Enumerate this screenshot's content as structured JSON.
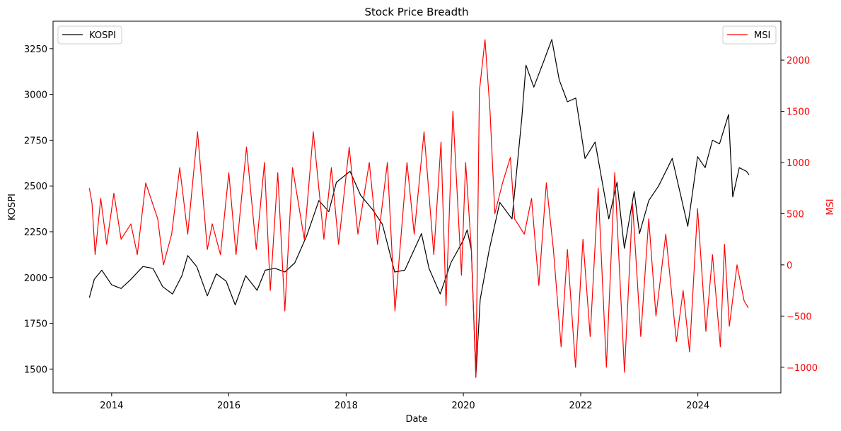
{
  "chart_data": {
    "type": "line",
    "title": "Stock Price Breadth",
    "xlabel": "Date",
    "ylabel_left": "KOSPI",
    "ylabel_right": "MSI",
    "x_ticks": [
      "2014",
      "2016",
      "2018",
      "2020",
      "2022",
      "2024"
    ],
    "xlim": [
      "2013-01-01",
      "2025-06-01"
    ],
    "ylim_left": [
      1370,
      3400
    ],
    "ylim_right": [
      -1250,
      2380
    ],
    "y_ticks_left": [
      1500,
      1750,
      2000,
      2250,
      2500,
      2750,
      3000,
      3250
    ],
    "y_ticks_right": [
      -1000,
      -500,
      0,
      500,
      1000,
      1500,
      2000
    ],
    "grid": false,
    "colors": {
      "left_axis": "#000000",
      "right_axis": "#ff0000"
    },
    "legends": [
      {
        "label": "KOSPI",
        "placement": "upper-left"
      },
      {
        "label": "MSI",
        "placement": "upper-right"
      }
    ],
    "series": [
      {
        "name": "KOSPI",
        "axis": "left",
        "color": "#000000",
        "points": [
          [
            "2013-08-15",
            1890
          ],
          [
            "2013-09-15",
            1990
          ],
          [
            "2013-11-01",
            2040
          ],
          [
            "2014-01-01",
            1960
          ],
          [
            "2014-03-01",
            1940
          ],
          [
            "2014-05-01",
            1990
          ],
          [
            "2014-07-15",
            2060
          ],
          [
            "2014-09-15",
            2050
          ],
          [
            "2014-11-15",
            1950
          ],
          [
            "2015-01-15",
            1910
          ],
          [
            "2015-03-15",
            2010
          ],
          [
            "2015-04-20",
            2120
          ],
          [
            "2015-06-15",
            2060
          ],
          [
            "2015-08-20",
            1900
          ],
          [
            "2015-10-15",
            2020
          ],
          [
            "2015-12-15",
            1980
          ],
          [
            "2016-02-10",
            1850
          ],
          [
            "2016-04-15",
            2010
          ],
          [
            "2016-06-25",
            1930
          ],
          [
            "2016-08-15",
            2040
          ],
          [
            "2016-10-15",
            2050
          ],
          [
            "2016-12-15",
            2030
          ],
          [
            "2017-02-15",
            2080
          ],
          [
            "2017-05-01",
            2230
          ],
          [
            "2017-07-15",
            2420
          ],
          [
            "2017-09-15",
            2360
          ],
          [
            "2017-11-01",
            2520
          ],
          [
            "2018-01-25",
            2580
          ],
          [
            "2018-04-01",
            2450
          ],
          [
            "2018-06-15",
            2370
          ],
          [
            "2018-08-15",
            2290
          ],
          [
            "2018-10-30",
            2030
          ],
          [
            "2019-01-01",
            2040
          ],
          [
            "2019-04-15",
            2240
          ],
          [
            "2019-06-01",
            2050
          ],
          [
            "2019-08-10",
            1910
          ],
          [
            "2019-10-15",
            2080
          ],
          [
            "2019-12-30",
            2200
          ],
          [
            "2020-01-25",
            2260
          ],
          [
            "2020-02-20",
            2150
          ],
          [
            "2020-03-19",
            1460
          ],
          [
            "2020-04-15",
            1880
          ],
          [
            "2020-06-10",
            2150
          ],
          [
            "2020-08-15",
            2410
          ],
          [
            "2020-10-30",
            2320
          ],
          [
            "2020-12-30",
            2870
          ],
          [
            "2021-01-25",
            3160
          ],
          [
            "2021-03-15",
            3040
          ],
          [
            "2021-05-15",
            3180
          ],
          [
            "2021-07-05",
            3300
          ],
          [
            "2021-08-20",
            3080
          ],
          [
            "2021-10-10",
            2960
          ],
          [
            "2021-12-01",
            2980
          ],
          [
            "2022-01-28",
            2650
          ],
          [
            "2022-04-01",
            2740
          ],
          [
            "2022-06-25",
            2320
          ],
          [
            "2022-08-15",
            2520
          ],
          [
            "2022-09-30",
            2160
          ],
          [
            "2022-11-30",
            2470
          ],
          [
            "2023-01-02",
            2240
          ],
          [
            "2023-03-01",
            2420
          ],
          [
            "2023-05-01",
            2500
          ],
          [
            "2023-07-25",
            2650
          ],
          [
            "2023-10-30",
            2280
          ],
          [
            "2023-12-30",
            2660
          ],
          [
            "2024-02-15",
            2600
          ],
          [
            "2024-04-01",
            2750
          ],
          [
            "2024-05-15",
            2730
          ],
          [
            "2024-07-10",
            2890
          ],
          [
            "2024-08-05",
            2440
          ],
          [
            "2024-09-15",
            2600
          ],
          [
            "2024-10-30",
            2580
          ],
          [
            "2024-11-15",
            2560
          ]
        ]
      },
      {
        "name": "MSI",
        "axis": "right",
        "color": "#ff0000",
        "points": [
          [
            "2013-08-15",
            750
          ],
          [
            "2013-09-01",
            600
          ],
          [
            "2013-09-20",
            100
          ],
          [
            "2013-10-25",
            650
          ],
          [
            "2013-12-01",
            200
          ],
          [
            "2014-01-15",
            700
          ],
          [
            "2014-03-01",
            250
          ],
          [
            "2014-05-01",
            400
          ],
          [
            "2014-06-10",
            100
          ],
          [
            "2014-08-01",
            800
          ],
          [
            "2014-10-15",
            450
          ],
          [
            "2014-11-20",
            0
          ],
          [
            "2015-01-10",
            300
          ],
          [
            "2015-03-01",
            950
          ],
          [
            "2015-04-20",
            300
          ],
          [
            "2015-06-20",
            1300
          ],
          [
            "2015-08-20",
            150
          ],
          [
            "2015-09-20",
            400
          ],
          [
            "2015-11-10",
            100
          ],
          [
            "2016-01-01",
            900
          ],
          [
            "2016-02-15",
            100
          ],
          [
            "2016-04-20",
            1150
          ],
          [
            "2016-06-20",
            150
          ],
          [
            "2016-08-10",
            1000
          ],
          [
            "2016-09-15",
            -250
          ],
          [
            "2016-11-01",
            900
          ],
          [
            "2016-12-15",
            -450
          ],
          [
            "2017-02-01",
            950
          ],
          [
            "2017-04-15",
            250
          ],
          [
            "2017-06-10",
            1300
          ],
          [
            "2017-08-15",
            250
          ],
          [
            "2017-10-01",
            950
          ],
          [
            "2017-11-15",
            200
          ],
          [
            "2018-01-20",
            1150
          ],
          [
            "2018-03-15",
            300
          ],
          [
            "2018-05-25",
            1000
          ],
          [
            "2018-07-15",
            200
          ],
          [
            "2018-09-15",
            1000
          ],
          [
            "2018-11-01",
            -450
          ],
          [
            "2019-01-15",
            1000
          ],
          [
            "2019-03-01",
            300
          ],
          [
            "2019-05-01",
            1300
          ],
          [
            "2019-07-01",
            100
          ],
          [
            "2019-08-15",
            1200
          ],
          [
            "2019-09-15",
            -400
          ],
          [
            "2019-10-28",
            1500
          ],
          [
            "2019-12-20",
            -100
          ],
          [
            "2020-01-15",
            1000
          ],
          [
            "2020-02-20",
            150
          ],
          [
            "2020-03-19",
            -1100
          ],
          [
            "2020-04-10",
            1700
          ],
          [
            "2020-05-15",
            2200
          ],
          [
            "2020-06-15",
            1500
          ],
          [
            "2020-07-15",
            500
          ],
          [
            "2020-09-01",
            800
          ],
          [
            "2020-10-20",
            1050
          ],
          [
            "2020-11-15",
            450
          ],
          [
            "2021-01-15",
            300
          ],
          [
            "2021-03-01",
            650
          ],
          [
            "2021-04-15",
            -200
          ],
          [
            "2021-06-01",
            800
          ],
          [
            "2021-07-15",
            150
          ],
          [
            "2021-09-01",
            -800
          ],
          [
            "2021-10-10",
            150
          ],
          [
            "2021-11-30",
            -1000
          ],
          [
            "2022-01-15",
            250
          ],
          [
            "2022-03-01",
            -700
          ],
          [
            "2022-04-20",
            750
          ],
          [
            "2022-06-10",
            -1000
          ],
          [
            "2022-08-01",
            900
          ],
          [
            "2022-10-01",
            -1050
          ],
          [
            "2022-11-20",
            600
          ],
          [
            "2023-01-10",
            -700
          ],
          [
            "2023-03-01",
            450
          ],
          [
            "2023-04-15",
            -500
          ],
          [
            "2023-06-15",
            300
          ],
          [
            "2023-08-20",
            -750
          ],
          [
            "2023-10-01",
            -250
          ],
          [
            "2023-11-10",
            -850
          ],
          [
            "2023-12-30",
            550
          ],
          [
            "2024-02-20",
            -650
          ],
          [
            "2024-04-01",
            100
          ],
          [
            "2024-05-20",
            -800
          ],
          [
            "2024-06-15",
            200
          ],
          [
            "2024-07-15",
            -600
          ],
          [
            "2024-09-01",
            0
          ],
          [
            "2024-10-15",
            -350
          ],
          [
            "2024-11-10",
            -420
          ]
        ]
      }
    ]
  }
}
